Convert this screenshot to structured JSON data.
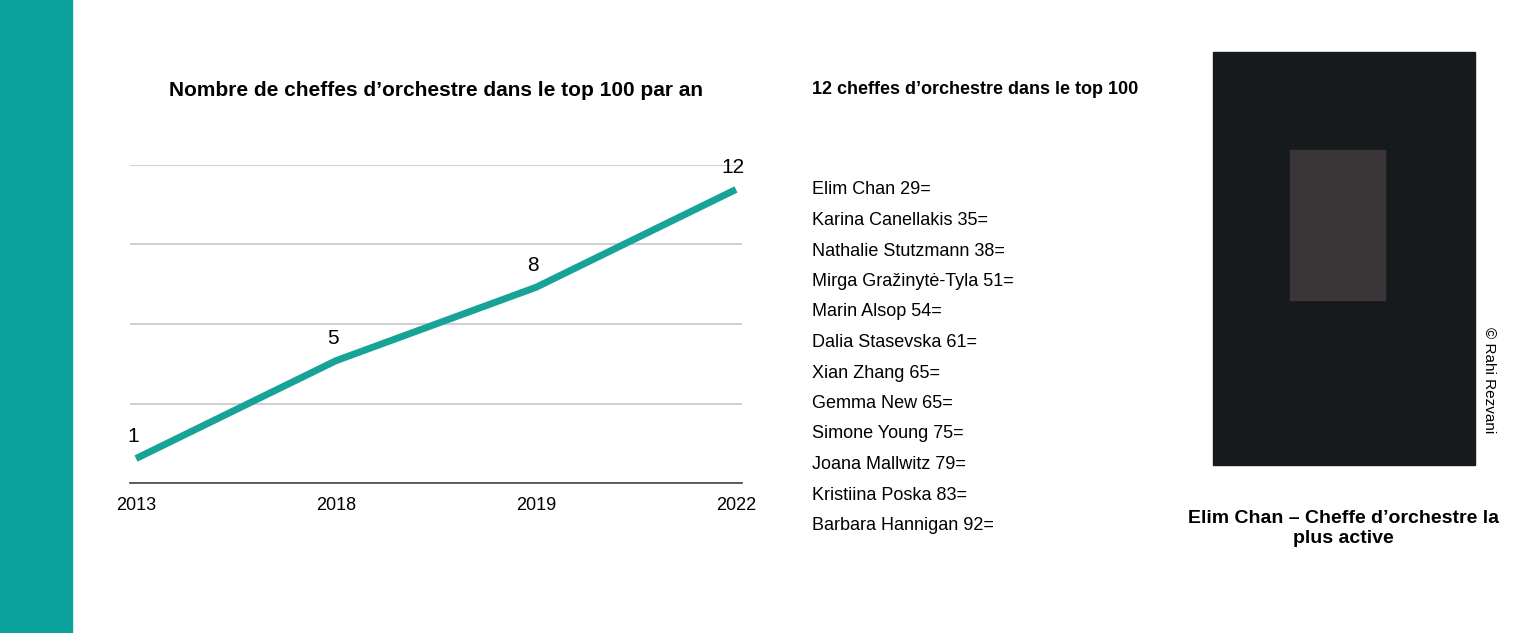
{
  "chart_data": {
    "type": "line",
    "title": "Nombre de cheffes d’orchestre dans le top 100 par an",
    "categories": [
      "2013",
      "2018",
      "2019",
      "2022"
    ],
    "values": [
      1,
      5,
      8,
      12
    ],
    "color": "#17a398",
    "ylim": [
      0,
      13
    ],
    "yticks": [
      0,
      3.25,
      6.5,
      9.75,
      13
    ],
    "grid": true,
    "data_labels": true,
    "tick_labels": "x"
  },
  "list": {
    "title": "12 cheffes d’orchestre dans le top 100",
    "items": [
      "Elim Chan 29=",
      "Karina Canellakis 35=",
      "Nathalie Stutzmann 38=",
      "Mirga Gražinytė-Tyla 51=",
      "Marin Alsop 54=",
      "Dalia Stasevska 61=",
      "Xian Zhang 65=",
      "Gemma New 65=",
      "Simone Young 75=",
      "Joana Mallwitz 79=",
      "Kristiina Poska 83=",
      "Barbara Hannigan 92="
    ]
  },
  "photo": {
    "caption": "Elim Chan – Cheffe d’orchestre la plus active",
    "credit": "© Rahi Rezvani"
  }
}
